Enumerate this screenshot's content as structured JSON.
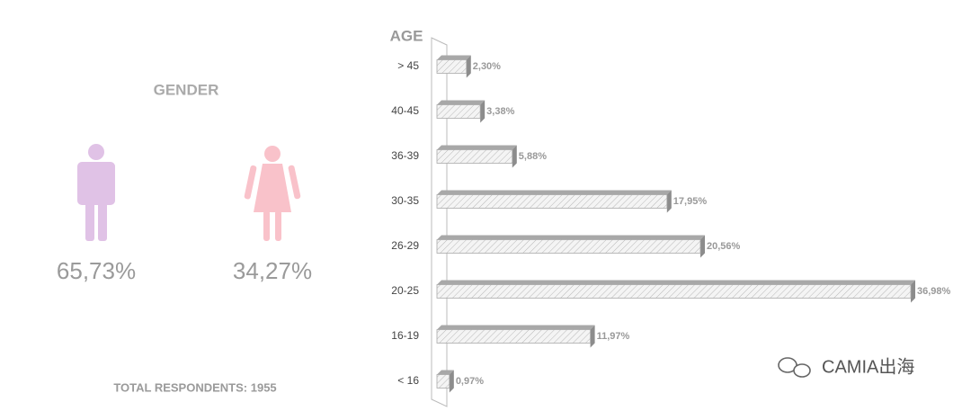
{
  "gender": {
    "title": "GENDER",
    "percentages": [
      "65,73%",
      "34,27%"
    ],
    "colors": [
      "#e0c2e6",
      "#f9c2ca"
    ]
  },
  "total_respondents": "TOTAL RESPONDENTS: 1955",
  "watermark": "CAMIA出海",
  "chart_data": {
    "type": "bar",
    "orientation": "horizontal",
    "y_label": "AGE",
    "categories": [
      "> 45",
      "40-45",
      "36-39",
      "30-35",
      "26-29",
      "20-25",
      "16-19",
      "< 16"
    ],
    "values": [
      2.3,
      3.38,
      5.88,
      17.95,
      20.56,
      36.98,
      11.97,
      0.97
    ],
    "value_labels": [
      "2,30%",
      "3,38%",
      "5,88%",
      "17,95%",
      "20,56%",
      "36,98%",
      "11,97%",
      "0,97%"
    ],
    "color": "#f2f2f2"
  }
}
